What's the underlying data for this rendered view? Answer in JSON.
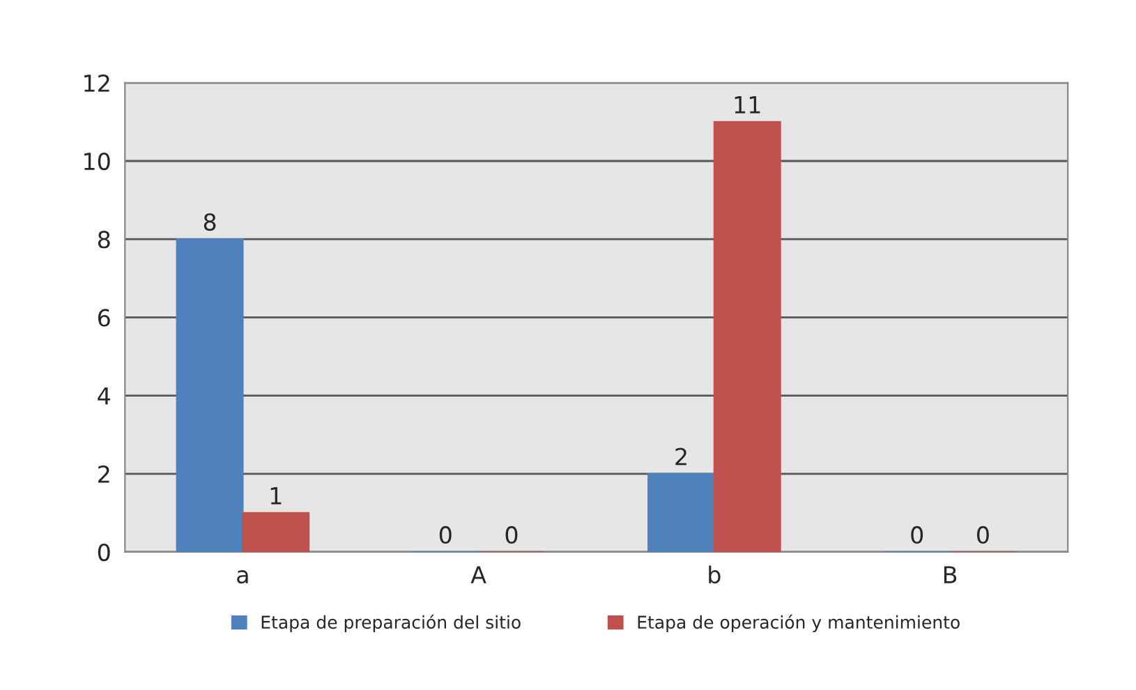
{
  "chart_data": {
    "type": "bar",
    "categories": [
      "a",
      "A",
      "b",
      "B"
    ],
    "series": [
      {
        "name": "Etapa de preparación del sitio",
        "color": "#4f81bd",
        "values": [
          8,
          0,
          2,
          0
        ]
      },
      {
        "name": "Etapa de operación y mantenimiento",
        "color": "#c0504d",
        "values": [
          1,
          0,
          11,
          0
        ]
      }
    ],
    "ylim": [
      0,
      12
    ],
    "yticks": [
      0,
      2,
      4,
      6,
      8,
      10,
      12
    ],
    "grid": "y",
    "legend": "bottom",
    "data_labels": true
  }
}
